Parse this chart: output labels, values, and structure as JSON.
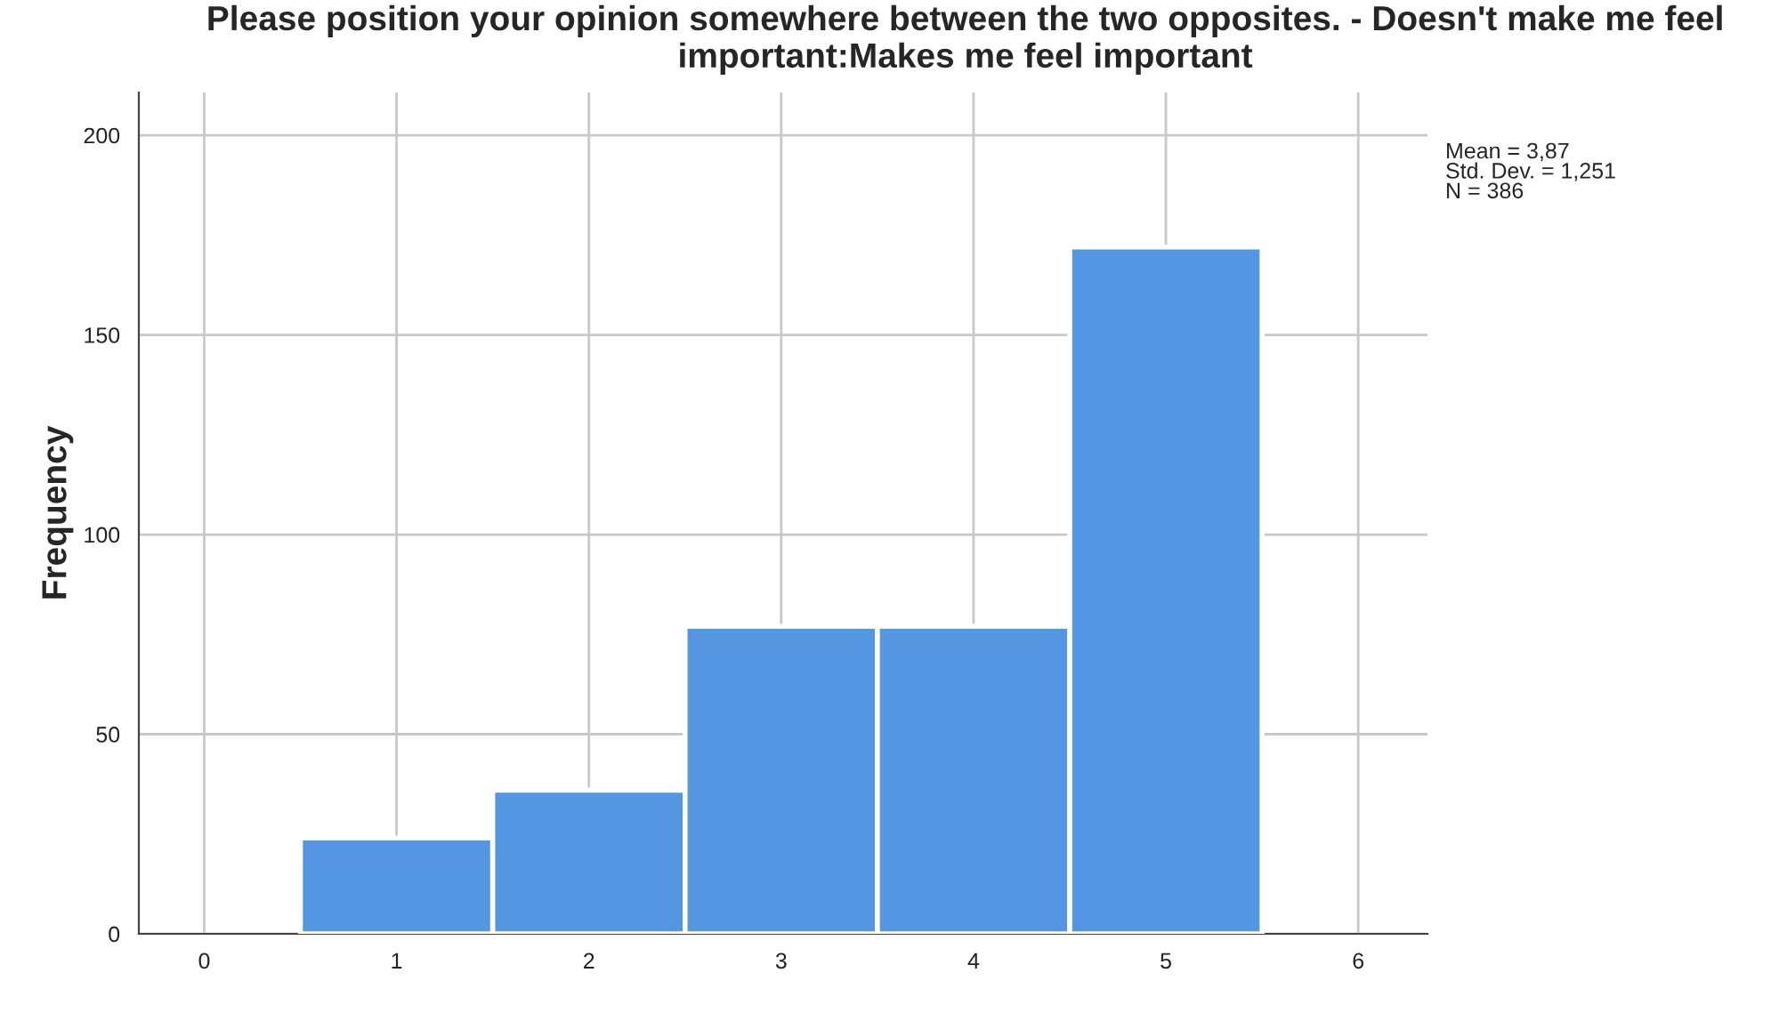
{
  "chart_data": {
    "type": "histogram",
    "title": "Please position your opinion somewhere between the two opposites. - Doesn't make me feel important:Makes me feel important",
    "ylabel": "Frequency",
    "bins": [
      0.5,
      1.5,
      2.5,
      3.5,
      4.5,
      5.5
    ],
    "values": [
      24,
      36,
      77,
      77,
      172
    ],
    "color": "#5596e2",
    "xlim": [
      -0.34,
      6.36
    ],
    "xticks": [
      0,
      1,
      2,
      3,
      4,
      5,
      6
    ],
    "ylim": [
      0,
      210.7
    ],
    "yticks": [
      0,
      50,
      100,
      150,
      200
    ],
    "grid": true,
    "annotations": [
      "Mean = 3,87\nStd. Dev. = 1,251\nN = 386"
    ]
  }
}
